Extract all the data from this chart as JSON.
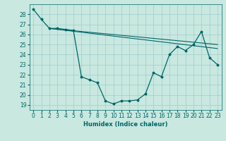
{
  "xlabel": "Humidex (Indice chaleur)",
  "xlim": [
    -0.5,
    23.5
  ],
  "ylim": [
    18.5,
    29.0
  ],
  "yticks": [
    19,
    20,
    21,
    22,
    23,
    24,
    25,
    26,
    27,
    28
  ],
  "xticks": [
    0,
    1,
    2,
    3,
    4,
    5,
    6,
    7,
    8,
    9,
    10,
    11,
    12,
    13,
    14,
    15,
    16,
    17,
    18,
    19,
    20,
    21,
    22,
    23
  ],
  "bg_color": "#c8e8e0",
  "line_color": "#006666",
  "grid_color": "#a0cccc",
  "series1_x": [
    0,
    1,
    2,
    3,
    4,
    5,
    6,
    7,
    8,
    9,
    10,
    11,
    12,
    13,
    14,
    15,
    16,
    17,
    18,
    19,
    20,
    21,
    22,
    23
  ],
  "series1_y": [
    28.5,
    27.5,
    26.6,
    26.6,
    26.5,
    26.4,
    21.8,
    21.5,
    21.2,
    19.4,
    19.1,
    19.4,
    19.4,
    19.5,
    20.1,
    22.2,
    21.8,
    24.0,
    24.8,
    24.4,
    25.0,
    26.3,
    23.7,
    23.0
  ],
  "series2_x": [
    2,
    23
  ],
  "series2_y": [
    26.6,
    25.0
  ],
  "series3_x": [
    2,
    23
  ],
  "series3_y": [
    26.6,
    24.6
  ],
  "tick_fontsize": 5.5,
  "xlabel_fontsize": 6.0
}
